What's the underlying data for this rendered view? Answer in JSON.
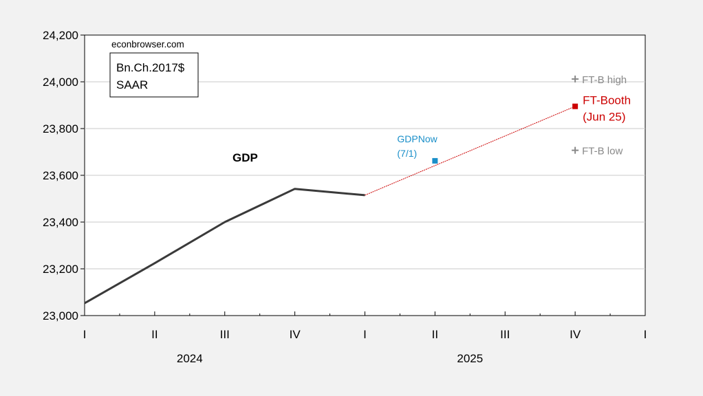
{
  "chart_data": {
    "type": "line",
    "title": "",
    "xlabel": "",
    "ylabel": "",
    "source_label": "econbrowser.com",
    "units_lines": [
      "Bn.Ch.2017$",
      "SAAR"
    ],
    "ylim": [
      23000,
      24200
    ],
    "yticks": [
      23000,
      23200,
      23400,
      23600,
      23800,
      24000,
      24200
    ],
    "ytick_labels": [
      "23,000",
      "23,200",
      "23,400",
      "23,600",
      "23,800",
      "24,000",
      "24,200"
    ],
    "grid": true,
    "x_quarters": [
      "I",
      "II",
      "III",
      "IV",
      "I",
      "II",
      "III",
      "IV",
      "I"
    ],
    "x_years": [
      {
        "label": "2024",
        "first_quarter_index": 0
      },
      {
        "label": "2025",
        "first_quarter_index": 4
      }
    ],
    "series": [
      {
        "name": "GDP",
        "color": "#3a3a3a",
        "x": [
          "2024Q1",
          "2024Q2",
          "2024Q3",
          "2024Q4",
          "2025Q1"
        ],
        "values": [
          23053,
          23224,
          23400,
          23542,
          23515
        ]
      },
      {
        "name": "",
        "color": "#cc0000",
        "style": "dotted",
        "x": [
          "2025Q1",
          "2025Q4"
        ],
        "values": [
          23515,
          23895
        ]
      }
    ],
    "points": [
      {
        "label_lines": [
          "GDPNow",
          "(7/1)"
        ],
        "x": "2025Q2",
        "value": 23662,
        "color": "#1a8fc9",
        "marker": "square"
      },
      {
        "label_lines": [
          "FT-Booth",
          "(Jun 25)"
        ],
        "x": "2025Q4",
        "value": 23895,
        "color": "#cc0000",
        "marker": "square"
      },
      {
        "label_lines": [
          "FT-B high"
        ],
        "x": "2025Q4",
        "value": 24012,
        "color": "#888888",
        "marker": "plus"
      },
      {
        "label_lines": [
          "FT-B low"
        ],
        "x": "2025Q4",
        "value": 23707,
        "color": "#888888",
        "marker": "plus"
      }
    ]
  }
}
